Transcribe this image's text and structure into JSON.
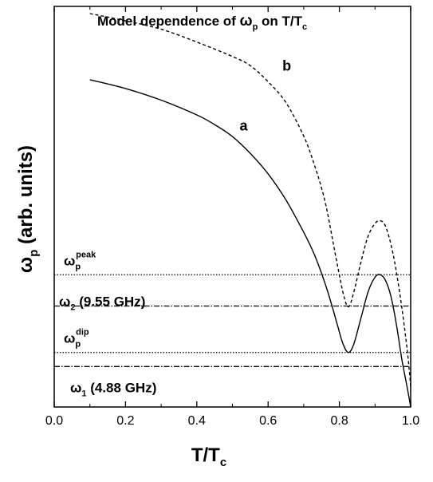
{
  "chart_data": {
    "type": "line",
    "title": {
      "main": "Model dependence of ",
      "omega": "ω",
      "sub_p": "p",
      "mid": " on T/T",
      "sub_c": "c"
    },
    "xlabel": {
      "main": "T/T",
      "sub": "c"
    },
    "ylabel": {
      "omega": "ω",
      "sub": "p",
      "rest": " (arb. units)"
    },
    "xlim": [
      0.0,
      1.0
    ],
    "ylim": [
      0,
      100
    ],
    "x_ticks": [
      0.0,
      0.2,
      0.4,
      0.6,
      0.8,
      1.0
    ],
    "x_tick_labels": [
      "0.0",
      "0.2",
      "0.4",
      "0.6",
      "0.8",
      "1.0"
    ],
    "y_tick_labels": false,
    "grid": false,
    "series": [
      {
        "name": "a",
        "style": "solid",
        "color": "#000000",
        "x": [
          0.1,
          0.2,
          0.3,
          0.4,
          0.45,
          0.5,
          0.55,
          0.6,
          0.65,
          0.7,
          0.73,
          0.76,
          0.78,
          0.795,
          0.81,
          0.825,
          0.84,
          0.86,
          0.88,
          0.9,
          0.915,
          0.93,
          0.945,
          0.96,
          0.975,
          0.99,
          1.0
        ],
        "y": [
          81.7,
          79.5,
          76.6,
          72.9,
          70.5,
          67.5,
          63.3,
          58.2,
          51.7,
          43.6,
          38.0,
          30.8,
          25.0,
          20.3,
          15.8,
          13.6,
          15.6,
          22.0,
          28.6,
          32.4,
          33.0,
          31.5,
          27.5,
          20.6,
          12.0,
          5.0,
          0.0
        ]
      },
      {
        "name": "b",
        "style": "dashed",
        "color": "#000000",
        "x": [
          0.1,
          0.2,
          0.3,
          0.4,
          0.5,
          0.55,
          0.6,
          0.65,
          0.7,
          0.73,
          0.76,
          0.79,
          0.81,
          0.825,
          0.84,
          0.86,
          0.88,
          0.9,
          0.915,
          0.93,
          0.95,
          0.97,
          0.99,
          1.0
        ],
        "y": [
          98.2,
          96.4,
          94.3,
          91.1,
          87.5,
          85.2,
          81.2,
          76.0,
          67.6,
          60.4,
          51.2,
          37.5,
          28.6,
          25.0,
          28.5,
          36.0,
          42.5,
          45.8,
          46.5,
          45.0,
          38.5,
          28.0,
          14.5,
          5.0
        ]
      }
    ],
    "reference_lines": [
      {
        "y": 33.0,
        "style": "dotted",
        "label_main": "ω",
        "label_sub": "p",
        "label_sup": "peak",
        "label_rest": ""
      },
      {
        "y": 25.2,
        "style": "dashdot",
        "label_main": "ω",
        "label_sub": "2",
        "label_sup": "",
        "label_rest": " (9.55 GHz)"
      },
      {
        "y": 13.6,
        "style": "dotted",
        "label_main": "ω",
        "label_sub": "p",
        "label_sup": "dip",
        "label_rest": ""
      },
      {
        "y": 10.1,
        "style": "dashdot",
        "label_main": "ω",
        "label_sub": "1",
        "label_sup": "",
        "label_rest": " (4.88 GHz)"
      }
    ],
    "annotations": [
      {
        "text": "a",
        "x": 0.52,
        "y": 69
      },
      {
        "text": "b",
        "x": 0.64,
        "y": 84
      }
    ]
  }
}
